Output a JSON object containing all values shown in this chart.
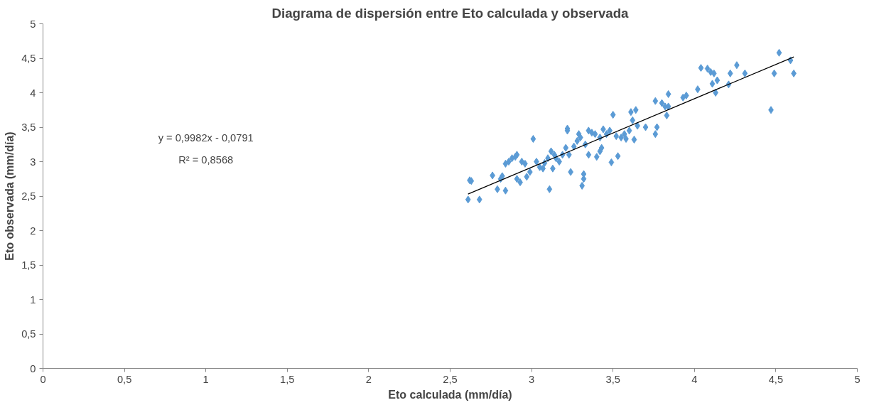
{
  "chart_data": {
    "type": "scatter",
    "title": "Diagrama de dispersión entre Eto calculada y observada",
    "xlabel": "Eto calculada (mm/día)",
    "ylabel": "Eto observada (mm/día)",
    "xlim": [
      0,
      5
    ],
    "ylim": [
      0,
      5
    ],
    "xticks": [
      0,
      {
        "value": 0.5,
        "label": "0,5"
      },
      1,
      {
        "value": 1.5,
        "label": "1,5"
      },
      2,
      {
        "value": 2.5,
        "label": "2,5"
      },
      3,
      {
        "value": 3.5,
        "label": "3,5"
      },
      4,
      {
        "value": 4.5,
        "label": "4,5"
      },
      5
    ],
    "yticks": [
      0,
      {
        "value": 0.5,
        "label": "0,5"
      },
      1,
      {
        "value": 1.5,
        "label": "1,5"
      },
      2,
      {
        "value": 2.5,
        "label": "2,5"
      },
      3,
      {
        "value": 3.5,
        "label": "3,5"
      },
      4,
      {
        "value": 4.5,
        "label": "4,5"
      },
      5
    ],
    "grid": false,
    "annotations": [
      "y = 0,9982x - 0,0791",
      "R² = 0,8568"
    ],
    "series": [
      {
        "color": "#5b9bd5",
        "marker": "diamond",
        "x": [
          2.61,
          2.63,
          2.62,
          2.68,
          2.76,
          2.79,
          2.81,
          2.82,
          2.84,
          2.84,
          2.86,
          2.88,
          2.9,
          2.91,
          2.91,
          2.93,
          2.94,
          2.96,
          2.97,
          2.99,
          3.01,
          3.03,
          3.05,
          3.07,
          3.08,
          3.1,
          3.11,
          3.12,
          3.13,
          3.14,
          3.15,
          3.17,
          3.19,
          3.21,
          3.22,
          3.22,
          3.23,
          3.24,
          3.26,
          3.28,
          3.29,
          3.3,
          3.31,
          3.32,
          3.32,
          3.33,
          3.35,
          3.35,
          3.37,
          3.39,
          3.4,
          3.42,
          3.42,
          3.43,
          3.44,
          3.46,
          3.48,
          3.49,
          3.5,
          3.52,
          3.53,
          3.55,
          3.57,
          3.58,
          3.6,
          3.61,
          3.62,
          3.63,
          3.64,
          3.65,
          3.7,
          3.76,
          3.76,
          3.77,
          3.8,
          3.82,
          3.83,
          3.84,
          3.84,
          3.93,
          3.95,
          4.02,
          4.04,
          4.08,
          4.1,
          4.11,
          4.12,
          4.13,
          4.14,
          4.21,
          4.22,
          4.26,
          4.31,
          4.47,
          4.49,
          4.52,
          4.59,
          4.61
        ],
        "values": [
          2.45,
          2.72,
          2.73,
          2.45,
          2.8,
          2.6,
          2.75,
          2.79,
          2.58,
          2.97,
          3.0,
          3.05,
          3.07,
          3.1,
          2.75,
          2.7,
          3.0,
          2.97,
          2.78,
          2.85,
          3.33,
          3.0,
          2.92,
          2.9,
          2.98,
          3.05,
          2.6,
          3.15,
          2.9,
          3.1,
          3.05,
          3.0,
          3.1,
          3.2,
          3.48,
          3.45,
          3.1,
          2.85,
          3.22,
          3.3,
          3.4,
          3.35,
          2.65,
          2.75,
          2.82,
          3.25,
          3.45,
          3.1,
          3.42,
          3.4,
          3.07,
          3.35,
          3.15,
          3.2,
          3.47,
          3.4,
          3.45,
          2.99,
          3.68,
          3.37,
          3.08,
          3.35,
          3.4,
          3.33,
          3.45,
          3.72,
          3.6,
          3.32,
          3.75,
          3.52,
          3.5,
          3.88,
          3.4,
          3.5,
          3.85,
          3.8,
          3.67,
          3.98,
          3.8,
          3.93,
          3.96,
          4.05,
          4.36,
          4.35,
          4.3,
          4.13,
          4.28,
          4.0,
          4.18,
          4.12,
          4.28,
          4.4,
          4.28,
          3.75,
          4.28,
          4.58,
          4.47,
          4.28
        ]
      },
      {
        "type": "line",
        "color": "#000000",
        "line_style": "solid",
        "x": [
          2.61,
          4.61
        ],
        "values": [
          2.53,
          4.52
        ]
      }
    ]
  }
}
